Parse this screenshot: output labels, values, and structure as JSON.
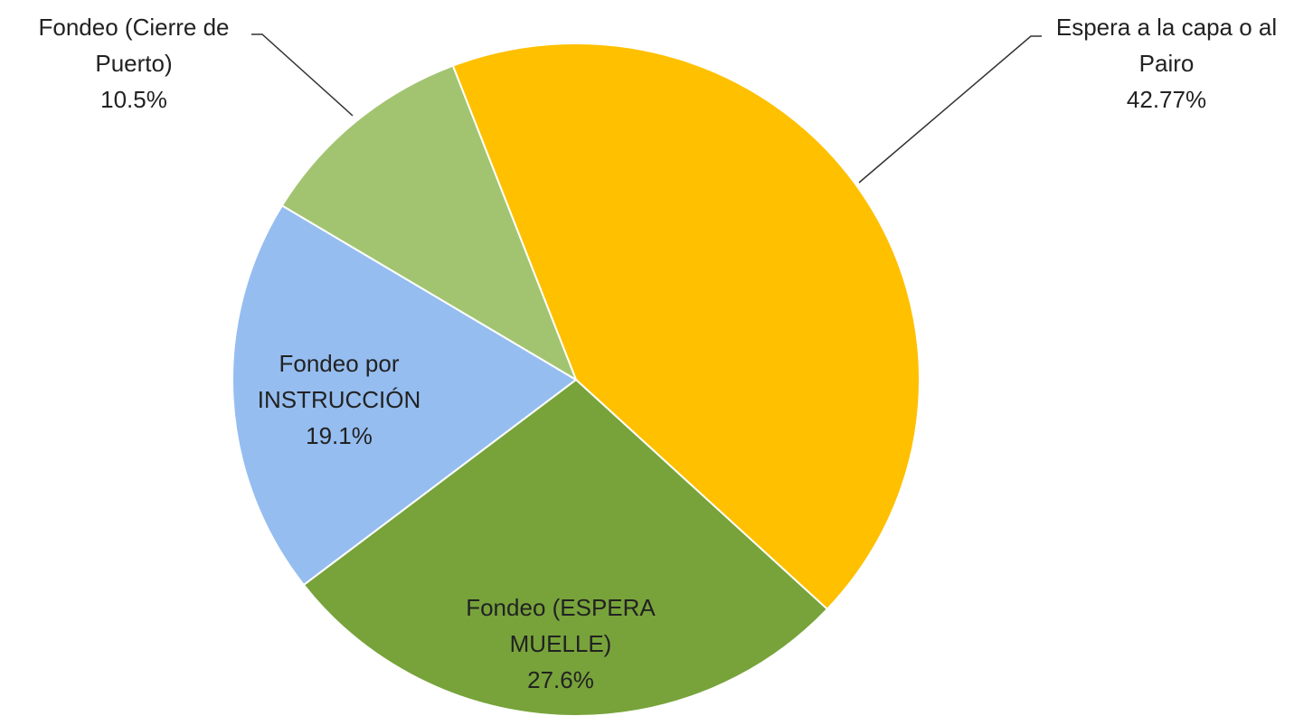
{
  "chart_data": {
    "type": "pie",
    "categories": [
      "Espera a la capa o al Pairo",
      "Fondeo (ESPERA MUELLE)",
      "Fondeo por INSTRUCCIÓN",
      "Fondeo (Cierre de Puerto)"
    ],
    "values": [
      42.77,
      27.6,
      19.1,
      10.5
    ],
    "value_labels": [
      "42.77%",
      "27.6%",
      "19.1%",
      "10.5%"
    ],
    "colors": [
      "#ffc000",
      "#77a33a",
      "#95bdf0",
      "#a2c470"
    ]
  }
}
